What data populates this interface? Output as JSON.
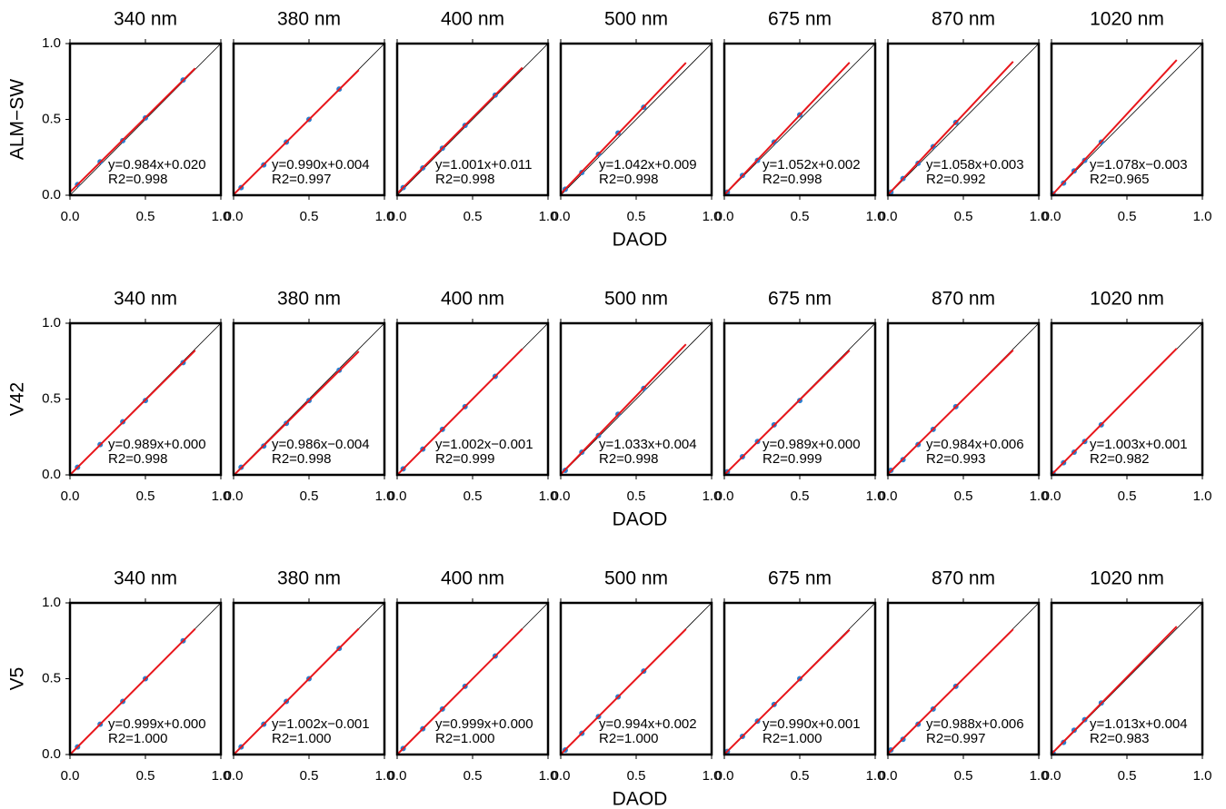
{
  "chart_data": [
    {
      "type": "scatter",
      "title": "340 nm",
      "ylabel": "ALM−SW",
      "x": [
        0.05,
        0.2,
        0.35,
        0.5,
        0.75
      ],
      "values": [
        0.07,
        0.22,
        0.36,
        0.51,
        0.76
      ],
      "fit": {
        "slope": 0.984,
        "intercept": 0.02,
        "x": [
          0,
          0.83
        ],
        "equation": "y=0.984x+0.020",
        "r2": "R2=0.998"
      },
      "xlim": [
        0,
        1
      ],
      "ylim": [
        0,
        1
      ],
      "xticks": [
        {
          "value": 0,
          "label": "0.0"
        },
        {
          "value": 0.5,
          "label": "0.5"
        },
        {
          "value": 1,
          "label": "1.0"
        }
      ],
      "yticks": [
        {
          "value": 0,
          "label": "0.0"
        },
        {
          "value": 0.5,
          "label": "0.5"
        },
        {
          "value": 1,
          "label": "1.0"
        }
      ]
    },
    {
      "type": "scatter",
      "title": "380 nm",
      "x": [
        0.05,
        0.2,
        0.35,
        0.5,
        0.7
      ],
      "values": [
        0.05,
        0.2,
        0.35,
        0.5,
        0.7
      ],
      "fit": {
        "slope": 0.99,
        "intercept": 0.004,
        "x": [
          0,
          0.83
        ],
        "equation": "y=0.990x+0.004",
        "r2": "R2=0.997"
      },
      "xlim": [
        0,
        1
      ],
      "ylim": [
        0,
        1
      ],
      "xticks": [
        {
          "value": 0,
          "label": "0.0"
        },
        {
          "value": 0.5,
          "label": "0.5"
        },
        {
          "value": 1,
          "label": "1.0"
        }
      ]
    },
    {
      "type": "scatter",
      "title": "400 nm",
      "x": [
        0.04,
        0.17,
        0.3,
        0.45,
        0.65
      ],
      "values": [
        0.05,
        0.18,
        0.31,
        0.46,
        0.66
      ],
      "fit": {
        "slope": 1.001,
        "intercept": 0.011,
        "x": [
          0,
          0.83
        ],
        "equation": "y=1.001x+0.011",
        "r2": "R2=0.998"
      },
      "xlim": [
        0,
        1
      ],
      "ylim": [
        0,
        1
      ],
      "xticks": [
        {
          "value": 0,
          "label": "0.0"
        },
        {
          "value": 0.5,
          "label": "0.5"
        },
        {
          "value": 1,
          "label": "1.0"
        }
      ]
    },
    {
      "type": "scatter",
      "title": "500 nm",
      "xlabel": "DAOD",
      "x": [
        0.03,
        0.14,
        0.25,
        0.38,
        0.55
      ],
      "values": [
        0.04,
        0.15,
        0.27,
        0.41,
        0.58
      ],
      "fit": {
        "slope": 1.042,
        "intercept": 0.009,
        "x": [
          0,
          0.83
        ],
        "equation": "y=1.042x+0.009",
        "r2": "R2=0.998"
      },
      "xlim": [
        0,
        1
      ],
      "ylim": [
        0,
        1
      ],
      "xticks": [
        {
          "value": 0,
          "label": "0.0"
        },
        {
          "value": 0.5,
          "label": "0.5"
        },
        {
          "value": 1,
          "label": "1.0"
        }
      ]
    },
    {
      "type": "scatter",
      "title": "675 nm",
      "x": [
        0.02,
        0.12,
        0.22,
        0.33,
        0.5
      ],
      "values": [
        0.02,
        0.13,
        0.23,
        0.35,
        0.53
      ],
      "fit": {
        "slope": 1.052,
        "intercept": 0.002,
        "x": [
          0,
          0.83
        ],
        "equation": "y=1.052x+0.002",
        "r2": "R2=0.998"
      },
      "xlim": [
        0,
        1
      ],
      "ylim": [
        0,
        1
      ],
      "xticks": [
        {
          "value": 0,
          "label": "0.0"
        },
        {
          "value": 0.5,
          "label": "0.5"
        },
        {
          "value": 1,
          "label": "1.0"
        }
      ]
    },
    {
      "type": "scatter",
      "title": "870 nm",
      "x": [
        0.02,
        0.1,
        0.2,
        0.3,
        0.45
      ],
      "values": [
        0.02,
        0.11,
        0.21,
        0.32,
        0.48
      ],
      "fit": {
        "slope": 1.058,
        "intercept": 0.003,
        "x": [
          0,
          0.83
        ],
        "equation": "y=1.058x+0.003",
        "r2": "R2=0.992"
      },
      "xlim": [
        0,
        1
      ],
      "ylim": [
        0,
        1
      ],
      "xticks": [
        {
          "value": 0,
          "label": "0.0"
        },
        {
          "value": 0.5,
          "label": "0.5"
        },
        {
          "value": 1,
          "label": "1.0"
        }
      ]
    },
    {
      "type": "scatter",
      "title": "1020 nm",
      "x": [
        0.01,
        0.08,
        0.15,
        0.22,
        0.33
      ],
      "values": [
        0.01,
        0.08,
        0.16,
        0.23,
        0.35
      ],
      "fit": {
        "slope": 1.078,
        "intercept": -0.003,
        "x": [
          0,
          0.83
        ],
        "equation": "y=1.078x−0.003",
        "r2": "R2=0.965"
      },
      "xlim": [
        0,
        1
      ],
      "ylim": [
        0,
        1
      ],
      "xticks": [
        {
          "value": 0,
          "label": "0.0"
        },
        {
          "value": 0.5,
          "label": "0.5"
        },
        {
          "value": 1,
          "label": "1.0"
        }
      ]
    },
    {
      "type": "scatter",
      "title": "340 nm",
      "ylabel": "V42",
      "x": [
        0.05,
        0.2,
        0.35,
        0.5,
        0.75
      ],
      "values": [
        0.05,
        0.2,
        0.35,
        0.49,
        0.74
      ],
      "fit": {
        "slope": 0.989,
        "intercept": 0,
        "x": [
          0,
          0.83
        ],
        "equation": "y=0.989x+0.000",
        "r2": "R2=0.998"
      },
      "xlim": [
        0,
        1
      ],
      "ylim": [
        0,
        1
      ],
      "xticks": [
        {
          "value": 0,
          "label": "0.0"
        },
        {
          "value": 0.5,
          "label": "0.5"
        },
        {
          "value": 1,
          "label": "1.0"
        }
      ],
      "yticks": [
        {
          "value": 0,
          "label": "0.0"
        },
        {
          "value": 0.5,
          "label": "0.5"
        },
        {
          "value": 1,
          "label": "1.0"
        }
      ]
    },
    {
      "type": "scatter",
      "title": "380 nm",
      "x": [
        0.05,
        0.2,
        0.35,
        0.5,
        0.7
      ],
      "values": [
        0.05,
        0.19,
        0.34,
        0.49,
        0.69
      ],
      "fit": {
        "slope": 0.986,
        "intercept": -0.004,
        "x": [
          0,
          0.83
        ],
        "equation": "y=0.986x−0.004",
        "r2": "R2=0.998"
      },
      "xlim": [
        0,
        1
      ],
      "ylim": [
        0,
        1
      ],
      "xticks": [
        {
          "value": 0,
          "label": "0.0"
        },
        {
          "value": 0.5,
          "label": "0.5"
        },
        {
          "value": 1,
          "label": "1.0"
        }
      ]
    },
    {
      "type": "scatter",
      "title": "400 nm",
      "x": [
        0.04,
        0.17,
        0.3,
        0.45,
        0.65
      ],
      "values": [
        0.04,
        0.17,
        0.3,
        0.45,
        0.65
      ],
      "fit": {
        "slope": 1.002,
        "intercept": -0.001,
        "x": [
          0,
          0.83
        ],
        "equation": "y=1.002x−0.001",
        "r2": "R2=0.999"
      },
      "xlim": [
        0,
        1
      ],
      "ylim": [
        0,
        1
      ],
      "xticks": [
        {
          "value": 0,
          "label": "0.0"
        },
        {
          "value": 0.5,
          "label": "0.5"
        },
        {
          "value": 1,
          "label": "1.0"
        }
      ]
    },
    {
      "type": "scatter",
      "title": "500 nm",
      "xlabel": "DAOD",
      "x": [
        0.03,
        0.14,
        0.25,
        0.38,
        0.55
      ],
      "values": [
        0.03,
        0.15,
        0.26,
        0.4,
        0.57
      ],
      "fit": {
        "slope": 1.033,
        "intercept": 0.004,
        "x": [
          0,
          0.83
        ],
        "equation": "y=1.033x+0.004",
        "r2": "R2=0.998"
      },
      "xlim": [
        0,
        1
      ],
      "ylim": [
        0,
        1
      ],
      "xticks": [
        {
          "value": 0,
          "label": "0.0"
        },
        {
          "value": 0.5,
          "label": "0.5"
        },
        {
          "value": 1,
          "label": "1.0"
        }
      ]
    },
    {
      "type": "scatter",
      "title": "675 nm",
      "x": [
        0.02,
        0.12,
        0.22,
        0.33,
        0.5
      ],
      "values": [
        0.02,
        0.12,
        0.22,
        0.33,
        0.49
      ],
      "fit": {
        "slope": 0.989,
        "intercept": 0,
        "x": [
          0,
          0.83
        ],
        "equation": "y=0.989x+0.000",
        "r2": "R2=0.999"
      },
      "xlim": [
        0,
        1
      ],
      "ylim": [
        0,
        1
      ],
      "xticks": [
        {
          "value": 0,
          "label": "0.0"
        },
        {
          "value": 0.5,
          "label": "0.5"
        },
        {
          "value": 1,
          "label": "1.0"
        }
      ]
    },
    {
      "type": "scatter",
      "title": "870 nm",
      "x": [
        0.02,
        0.1,
        0.2,
        0.3,
        0.45
      ],
      "values": [
        0.03,
        0.1,
        0.2,
        0.3,
        0.45
      ],
      "fit": {
        "slope": 0.984,
        "intercept": 0.006,
        "x": [
          0,
          0.83
        ],
        "equation": "y=0.984x+0.006",
        "r2": "R2=0.993"
      },
      "xlim": [
        0,
        1
      ],
      "ylim": [
        0,
        1
      ],
      "xticks": [
        {
          "value": 0,
          "label": "0.0"
        },
        {
          "value": 0.5,
          "label": "0.5"
        },
        {
          "value": 1,
          "label": "1.0"
        }
      ]
    },
    {
      "type": "scatter",
      "title": "1020 nm",
      "x": [
        0.01,
        0.08,
        0.15,
        0.22,
        0.33
      ],
      "values": [
        0.01,
        0.08,
        0.15,
        0.22,
        0.33
      ],
      "fit": {
        "slope": 1.003,
        "intercept": 0.001,
        "x": [
          0,
          0.83
        ],
        "equation": "y=1.003x+0.001",
        "r2": "R2=0.982"
      },
      "xlim": [
        0,
        1
      ],
      "ylim": [
        0,
        1
      ],
      "xticks": [
        {
          "value": 0,
          "label": "0.0"
        },
        {
          "value": 0.5,
          "label": "0.5"
        },
        {
          "value": 1,
          "label": "1.0"
        }
      ]
    },
    {
      "type": "scatter",
      "title": "340 nm",
      "ylabel": "V5",
      "x": [
        0.05,
        0.2,
        0.35,
        0.5,
        0.75
      ],
      "values": [
        0.05,
        0.2,
        0.35,
        0.5,
        0.75
      ],
      "fit": {
        "slope": 0.999,
        "intercept": 0,
        "x": [
          0,
          0.83
        ],
        "equation": "y=0.999x+0.000",
        "r2": "R2=1.000"
      },
      "xlim": [
        0,
        1
      ],
      "ylim": [
        0,
        1
      ],
      "xticks": [
        {
          "value": 0,
          "label": "0.0"
        },
        {
          "value": 0.5,
          "label": "0.5"
        },
        {
          "value": 1,
          "label": "1.0"
        }
      ],
      "yticks": [
        {
          "value": 0,
          "label": "0.0"
        },
        {
          "value": 0.5,
          "label": "0.5"
        },
        {
          "value": 1,
          "label": "1.0"
        }
      ]
    },
    {
      "type": "scatter",
      "title": "380 nm",
      "x": [
        0.05,
        0.2,
        0.35,
        0.5,
        0.7
      ],
      "values": [
        0.05,
        0.2,
        0.35,
        0.5,
        0.7
      ],
      "fit": {
        "slope": 1.002,
        "intercept": -0.001,
        "x": [
          0,
          0.83
        ],
        "equation": "y=1.002x−0.001",
        "r2": "R2=1.000"
      },
      "xlim": [
        0,
        1
      ],
      "ylim": [
        0,
        1
      ],
      "xticks": [
        {
          "value": 0,
          "label": "0.0"
        },
        {
          "value": 0.5,
          "label": "0.5"
        },
        {
          "value": 1,
          "label": "1.0"
        }
      ]
    },
    {
      "type": "scatter",
      "title": "400 nm",
      "x": [
        0.04,
        0.17,
        0.3,
        0.45,
        0.65
      ],
      "values": [
        0.04,
        0.17,
        0.3,
        0.45,
        0.65
      ],
      "fit": {
        "slope": 0.999,
        "intercept": 0,
        "x": [
          0,
          0.83
        ],
        "equation": "y=0.999x+0.000",
        "r2": "R2=1.000"
      },
      "xlim": [
        0,
        1
      ],
      "ylim": [
        0,
        1
      ],
      "xticks": [
        {
          "value": 0,
          "label": "0.0"
        },
        {
          "value": 0.5,
          "label": "0.5"
        },
        {
          "value": 1,
          "label": "1.0"
        }
      ]
    },
    {
      "type": "scatter",
      "title": "500 nm",
      "xlabel": "DAOD",
      "x": [
        0.03,
        0.14,
        0.25,
        0.38,
        0.55
      ],
      "values": [
        0.03,
        0.14,
        0.25,
        0.38,
        0.55
      ],
      "fit": {
        "slope": 0.994,
        "intercept": 0.002,
        "x": [
          0,
          0.83
        ],
        "equation": "y=0.994x+0.002",
        "r2": "R2=1.000"
      },
      "xlim": [
        0,
        1
      ],
      "ylim": [
        0,
        1
      ],
      "xticks": [
        {
          "value": 0,
          "label": "0.0"
        },
        {
          "value": 0.5,
          "label": "0.5"
        },
        {
          "value": 1,
          "label": "1.0"
        }
      ]
    },
    {
      "type": "scatter",
      "title": "675 nm",
      "x": [
        0.02,
        0.12,
        0.22,
        0.33,
        0.5
      ],
      "values": [
        0.02,
        0.12,
        0.22,
        0.33,
        0.5
      ],
      "fit": {
        "slope": 0.99,
        "intercept": 0.001,
        "x": [
          0,
          0.83
        ],
        "equation": "y=0.990x+0.001",
        "r2": "R2=1.000"
      },
      "xlim": [
        0,
        1
      ],
      "ylim": [
        0,
        1
      ],
      "xticks": [
        {
          "value": 0,
          "label": "0.0"
        },
        {
          "value": 0.5,
          "label": "0.5"
        },
        {
          "value": 1,
          "label": "1.0"
        }
      ]
    },
    {
      "type": "scatter",
      "title": "870 nm",
      "x": [
        0.02,
        0.1,
        0.2,
        0.3,
        0.45
      ],
      "values": [
        0.03,
        0.1,
        0.2,
        0.3,
        0.45
      ],
      "fit": {
        "slope": 0.988,
        "intercept": 0.006,
        "x": [
          0,
          0.83
        ],
        "equation": "y=0.988x+0.006",
        "r2": "R2=0.997"
      },
      "xlim": [
        0,
        1
      ],
      "ylim": [
        0,
        1
      ],
      "xticks": [
        {
          "value": 0,
          "label": "0.0"
        },
        {
          "value": 0.5,
          "label": "0.5"
        },
        {
          "value": 1,
          "label": "1.0"
        }
      ]
    },
    {
      "type": "scatter",
      "title": "1020 nm",
      "x": [
        0.01,
        0.08,
        0.15,
        0.22,
        0.33
      ],
      "values": [
        0.01,
        0.08,
        0.16,
        0.23,
        0.34
      ],
      "fit": {
        "slope": 1.013,
        "intercept": 0.004,
        "x": [
          0,
          0.83
        ],
        "equation": "y=1.013x+0.004",
        "r2": "R2=0.983"
      },
      "xlim": [
        0,
        1
      ],
      "ylim": [
        0,
        1
      ],
      "xticks": [
        {
          "value": 0,
          "label": "0.0"
        },
        {
          "value": 0.5,
          "label": "0.5"
        },
        {
          "value": 1,
          "label": "1.0"
        }
      ]
    }
  ]
}
